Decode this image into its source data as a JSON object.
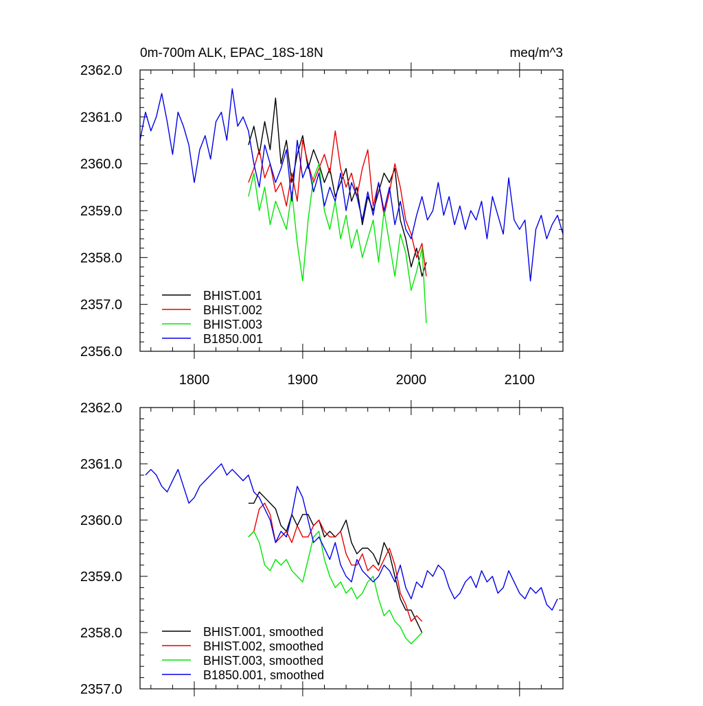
{
  "chart_data": [
    {
      "type": "line",
      "title": "0m-700m ALK, EPAC_18S-18N",
      "units": "meq/m^3",
      "xlim": [
        1750,
        2140
      ],
      "ylim": [
        2356.0,
        2362.0
      ],
      "x_ticks": [
        1800,
        1900,
        2000,
        2100
      ],
      "y_ticks": [
        "2356.0",
        "2357.0",
        "2358.0",
        "2359.0",
        "2360.0",
        "2361.0",
        "2362.0"
      ],
      "legend": "bottom-left",
      "series": [
        {
          "name": "BHIST.001",
          "color": "#000000",
          "x": [
            1850,
            1855,
            1860,
            1865,
            1870,
            1875,
            1880,
            1885,
            1890,
            1895,
            1900,
            1905,
            1910,
            1915,
            1920,
            1925,
            1930,
            1935,
            1940,
            1945,
            1950,
            1955,
            1960,
            1965,
            1970,
            1975,
            1980,
            1985,
            1990,
            1995,
            2000,
            2005,
            2010,
            2014
          ],
          "y": [
            2360.4,
            2360.8,
            2360.2,
            2360.9,
            2360.3,
            2361.4,
            2360.0,
            2360.5,
            2359.6,
            2360.2,
            2360.6,
            2359.9,
            2360.3,
            2360.0,
            2359.6,
            2359.9,
            2359.3,
            2359.6,
            2359.9,
            2359.2,
            2359.5,
            2358.7,
            2359.3,
            2359.0,
            2359.4,
            2359.8,
            2359.6,
            2359.9,
            2358.8,
            2358.4,
            2357.8,
            2358.2,
            2357.6,
            2357.9
          ]
        },
        {
          "name": "BHIST.002",
          "color": "#e60000",
          "x": [
            1850,
            1855,
            1860,
            1865,
            1870,
            1875,
            1880,
            1885,
            1890,
            1895,
            1900,
            1905,
            1910,
            1915,
            1920,
            1925,
            1930,
            1935,
            1940,
            1945,
            1950,
            1955,
            1960,
            1965,
            1970,
            1975,
            1980,
            1985,
            1990,
            1995,
            2000,
            2005,
            2010,
            2014
          ],
          "y": [
            2359.6,
            2359.9,
            2360.3,
            2359.7,
            2360.0,
            2359.4,
            2359.6,
            2359.1,
            2359.8,
            2359.2,
            2360.5,
            2360.0,
            2359.6,
            2359.9,
            2360.2,
            2359.8,
            2360.7,
            2359.9,
            2359.5,
            2359.8,
            2359.3,
            2359.9,
            2360.3,
            2359.1,
            2359.6,
            2358.9,
            2359.4,
            2360.0,
            2359.5,
            2358.8,
            2358.5,
            2358.0,
            2358.3,
            2357.6
          ]
        },
        {
          "name": "BHIST.003",
          "color": "#00e600",
          "x": [
            1850,
            1855,
            1860,
            1865,
            1870,
            1875,
            1880,
            1885,
            1890,
            1895,
            1900,
            1905,
            1910,
            1915,
            1920,
            1925,
            1930,
            1935,
            1940,
            1945,
            1950,
            1955,
            1960,
            1965,
            1970,
            1975,
            1980,
            1985,
            1990,
            1995,
            2000,
            2005,
            2010,
            2014
          ],
          "y": [
            2359.3,
            2359.8,
            2359.0,
            2359.5,
            2358.7,
            2359.2,
            2358.9,
            2358.6,
            2359.4,
            2358.3,
            2357.5,
            2358.8,
            2359.7,
            2360.0,
            2359.0,
            2358.6,
            2359.2,
            2358.4,
            2358.9,
            2358.2,
            2358.6,
            2358.0,
            2358.4,
            2358.8,
            2357.9,
            2359.0,
            2358.3,
            2357.6,
            2358.5,
            2358.1,
            2357.3,
            2357.7,
            2358.2,
            2356.6
          ]
        },
        {
          "name": "B1850.001",
          "color": "#0000e6",
          "x": [
            1750,
            1755,
            1760,
            1765,
            1770,
            1775,
            1780,
            1785,
            1790,
            1795,
            1800,
            1805,
            1810,
            1815,
            1820,
            1825,
            1830,
            1835,
            1840,
            1845,
            1850,
            1855,
            1860,
            1865,
            1870,
            1875,
            1880,
            1885,
            1890,
            1895,
            1900,
            1905,
            1910,
            1915,
            1920,
            1925,
            1930,
            1935,
            1940,
            1945,
            1950,
            1955,
            1960,
            1965,
            1970,
            1975,
            1980,
            1985,
            1990,
            1995,
            2000,
            2005,
            2010,
            2015,
            2020,
            2025,
            2030,
            2035,
            2040,
            2045,
            2050,
            2055,
            2060,
            2065,
            2070,
            2075,
            2080,
            2085,
            2090,
            2095,
            2100,
            2105,
            2110,
            2115,
            2120,
            2125,
            2130,
            2135,
            2140
          ],
          "y": [
            2360.5,
            2361.1,
            2360.7,
            2361.0,
            2361.5,
            2360.9,
            2360.2,
            2361.1,
            2360.8,
            2360.4,
            2359.6,
            2360.3,
            2360.6,
            2360.1,
            2360.9,
            2361.1,
            2360.5,
            2361.6,
            2360.8,
            2361.0,
            2360.7,
            2360.0,
            2359.5,
            2360.4,
            2360.0,
            2359.6,
            2359.9,
            2360.3,
            2359.2,
            2360.5,
            2359.7,
            2360.0,
            2359.4,
            2359.8,
            2359.1,
            2359.5,
            2359.2,
            2359.8,
            2359.0,
            2359.6,
            2359.3,
            2358.8,
            2359.4,
            2358.9,
            2359.6,
            2359.0,
            2359.5,
            2358.7,
            2359.2,
            2358.6,
            2358.4,
            2358.9,
            2359.3,
            2358.8,
            2359.0,
            2359.6,
            2358.9,
            2359.3,
            2358.7,
            2359.1,
            2358.6,
            2359.0,
            2358.8,
            2359.2,
            2358.4,
            2359.3,
            2358.9,
            2358.5,
            2359.7,
            2358.8,
            2358.6,
            2358.8,
            2357.5,
            2358.6,
            2358.9,
            2358.4,
            2358.7,
            2358.9,
            2358.5
          ]
        }
      ]
    },
    {
      "type": "line",
      "xlim": [
        1750,
        2140
      ],
      "ylim": [
        2357.0,
        2362.0
      ],
      "x_ticks": [
        1800,
        1900,
        2000,
        2100
      ],
      "y_ticks": [
        "2357.0",
        "2358.0",
        "2359.0",
        "2360.0",
        "2361.0",
        "2362.0"
      ],
      "legend": "bottom-left",
      "series": [
        {
          "name": "BHIST.001, smoothed",
          "color": "#000000",
          "x": [
            1850,
            1855,
            1860,
            1865,
            1870,
            1875,
            1880,
            1885,
            1890,
            1895,
            1900,
            1905,
            1910,
            1915,
            1920,
            1925,
            1930,
            1935,
            1940,
            1945,
            1950,
            1955,
            1960,
            1965,
            1970,
            1975,
            1980,
            1985,
            1990,
            1995,
            2000,
            2005,
            2010
          ],
          "y": [
            2360.3,
            2360.3,
            2360.5,
            2360.4,
            2360.3,
            2360.2,
            2359.9,
            2359.8,
            2360.1,
            2359.9,
            2360.1,
            2360.1,
            2359.9,
            2360.0,
            2359.7,
            2359.8,
            2359.7,
            2359.8,
            2360.0,
            2359.6,
            2359.4,
            2359.5,
            2359.5,
            2359.4,
            2359.2,
            2359.6,
            2359.4,
            2359.0,
            2358.6,
            2358.4,
            2358.4,
            2358.2,
            2358.0
          ]
        },
        {
          "name": "BHIST.002, smoothed",
          "color": "#e60000",
          "x": [
            1850,
            1855,
            1860,
            1865,
            1870,
            1875,
            1880,
            1885,
            1890,
            1895,
            1900,
            1905,
            1910,
            1915,
            1920,
            1925,
            1930,
            1935,
            1940,
            1945,
            1950,
            1955,
            1960,
            1965,
            1970,
            1975,
            1980,
            1985,
            1990,
            1995,
            2000,
            2005,
            2010
          ],
          "y": [
            2359.7,
            2359.8,
            2360.2,
            2360.3,
            2360.1,
            2359.6,
            2359.7,
            2359.8,
            2359.6,
            2359.9,
            2359.7,
            2359.7,
            2359.9,
            2360.0,
            2359.8,
            2359.7,
            2359.7,
            2359.8,
            2359.4,
            2359.2,
            2359.2,
            2359.4,
            2359.1,
            2359.2,
            2359.1,
            2359.3,
            2359.5,
            2359.2,
            2358.7,
            2358.5,
            2358.2,
            2358.3,
            2358.2
          ]
        },
        {
          "name": "BHIST.003, smoothed",
          "color": "#00e600",
          "x": [
            1850,
            1855,
            1860,
            1865,
            1870,
            1875,
            1880,
            1885,
            1890,
            1895,
            1900,
            1905,
            1910,
            1915,
            1920,
            1925,
            1930,
            1935,
            1940,
            1945,
            1950,
            1955,
            1960,
            1965,
            1970,
            1975,
            1980,
            1985,
            1990,
            1995,
            2000,
            2005,
            2010
          ],
          "y": [
            2359.7,
            2359.8,
            2359.6,
            2359.2,
            2359.1,
            2359.3,
            2359.2,
            2359.3,
            2359.1,
            2359.0,
            2358.9,
            2359.3,
            2359.7,
            2359.8,
            2359.3,
            2359.0,
            2358.8,
            2358.9,
            2358.7,
            2358.8,
            2358.6,
            2358.7,
            2358.9,
            2359.0,
            2358.6,
            2358.3,
            2358.4,
            2358.2,
            2358.1,
            2357.9,
            2357.8,
            2357.9,
            2358.0
          ]
        },
        {
          "name": "B1850.001, smoothed",
          "color": "#0000e6",
          "x": [
            1755,
            1760,
            1765,
            1770,
            1775,
            1780,
            1785,
            1790,
            1795,
            1800,
            1805,
            1810,
            1815,
            1820,
            1825,
            1830,
            1835,
            1840,
            1845,
            1850,
            1855,
            1860,
            1865,
            1870,
            1875,
            1880,
            1885,
            1890,
            1895,
            1900,
            1905,
            1910,
            1915,
            1920,
            1925,
            1930,
            1935,
            1940,
            1945,
            1950,
            1955,
            1960,
            1965,
            1970,
            1975,
            1980,
            1985,
            1990,
            1995,
            2000,
            2005,
            2010,
            2015,
            2020,
            2025,
            2030,
            2035,
            2040,
            2045,
            2050,
            2055,
            2060,
            2065,
            2070,
            2075,
            2080,
            2085,
            2090,
            2095,
            2100,
            2105,
            2110,
            2115,
            2120,
            2125,
            2130,
            2135
          ],
          "y": [
            2360.8,
            2360.9,
            2360.8,
            2360.6,
            2360.5,
            2360.7,
            2360.9,
            2360.6,
            2360.3,
            2360.4,
            2360.6,
            2360.7,
            2360.8,
            2360.9,
            2361.0,
            2360.8,
            2360.9,
            2360.8,
            2360.7,
            2360.8,
            2360.5,
            2360.4,
            2360.2,
            2360.0,
            2359.6,
            2359.8,
            2359.7,
            2360.1,
            2360.6,
            2360.4,
            2360.0,
            2359.6,
            2359.7,
            2359.5,
            2359.3,
            2359.6,
            2359.2,
            2359.0,
            2358.9,
            2359.3,
            2359.1,
            2359.0,
            2358.9,
            2359.0,
            2359.2,
            2359.1,
            2358.9,
            2359.2,
            2358.8,
            2358.6,
            2358.9,
            2358.8,
            2359.1,
            2359.0,
            2359.2,
            2359.1,
            2358.8,
            2358.6,
            2358.7,
            2358.9,
            2359.0,
            2358.8,
            2359.1,
            2358.9,
            2359.0,
            2358.7,
            2358.8,
            2359.1,
            2358.9,
            2358.7,
            2358.6,
            2358.8,
            2358.7,
            2358.8,
            2358.5,
            2358.4,
            2358.6
          ]
        }
      ]
    }
  ]
}
